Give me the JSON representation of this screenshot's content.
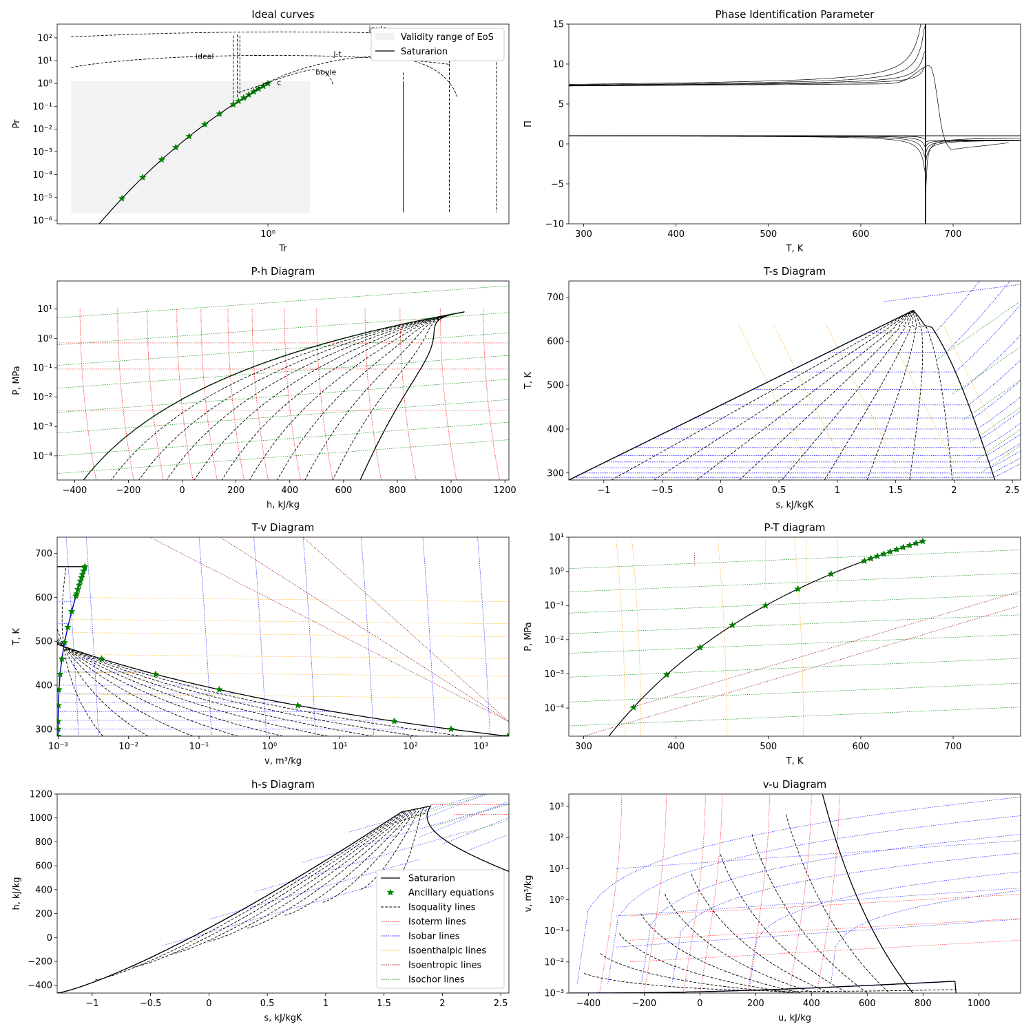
{
  "figure": {
    "background": "#ffffff"
  },
  "styles": {
    "saturation": "#000000",
    "ancillary": "#008000",
    "isoquality": "#000000",
    "isotherm": "#ff0000",
    "isobar": "#0000ff",
    "isoenthalpic": "#ffa500",
    "isoentropic": "#800000",
    "isochor": "#008000",
    "validity_fill": "#f2f2f2"
  },
  "chart_data": [
    {
      "id": "ideal",
      "type": "line",
      "title": "Ideal curves",
      "xlabel": "Tr",
      "ylabel": "Pr",
      "xscale": "log",
      "yscale": "log",
      "xlim": [
        0.4,
        2.85
      ],
      "ylim": [
        7e-07,
        400
      ],
      "xticks": [
        {
          "v": 1,
          "label": "10⁰"
        }
      ],
      "yticks": [
        {
          "v": 1e-06,
          "label": "10⁻⁶"
        },
        {
          "v": 1e-05,
          "label": "10⁻⁵"
        },
        {
          "v": 0.0001,
          "label": "10⁻⁴"
        },
        {
          "v": 0.001,
          "label": "10⁻³"
        },
        {
          "v": 0.01,
          "label": "10⁻²"
        },
        {
          "v": 0.1,
          "label": "10⁻¹"
        },
        {
          "v": 1,
          "label": "10⁰"
        },
        {
          "v": 10,
          "label": "10¹"
        },
        {
          "v": 100,
          "label": "10²"
        }
      ],
      "legend": {
        "position": "top-right",
        "entries": [
          "Validity range of EoS",
          "Saturarion"
        ]
      },
      "annotations": [
        {
          "text": "joule",
          "x": 1.55,
          "y": 190
        },
        {
          "text": "ideal",
          "x": 0.73,
          "y": 12
        },
        {
          "text": "j-t",
          "x": 1.33,
          "y": 15
        },
        {
          "text": "boyle",
          "x": 1.23,
          "y": 2.4
        },
        {
          "text": "c",
          "x": 1.04,
          "y": 0.85
        }
      ]
    },
    {
      "id": "pip",
      "type": "line",
      "title": "Phase Identification Parameter",
      "xlabel": "T, K",
      "ylabel": "Π",
      "xlim": [
        284,
        773
      ],
      "ylim": [
        -10,
        15
      ],
      "xticks": [
        300,
        400,
        500,
        600,
        700
      ],
      "yticks": [
        -10,
        -5,
        0,
        5,
        10,
        15
      ],
      "critical_temperature": 670
    },
    {
      "id": "ph",
      "type": "line",
      "title": "P-h Diagram",
      "xlabel": "h, kJ/kg",
      "ylabel": "P, MPa",
      "yscale": "log",
      "xlim": [
        -465,
        1215
      ],
      "ylim": [
        1.5e-05,
        90
      ],
      "xticks": [
        -400,
        -200,
        0,
        200,
        400,
        600,
        800,
        1000,
        1200
      ],
      "yticks": [
        {
          "v": 0.0001,
          "label": "10⁻⁴"
        },
        {
          "v": 0.001,
          "label": "10⁻³"
        },
        {
          "v": 0.01,
          "label": "10⁻²"
        },
        {
          "v": 0.1,
          "label": "10⁻¹"
        },
        {
          "v": 1,
          "label": "10⁰"
        },
        {
          "v": 10,
          "label": "10¹"
        }
      ]
    },
    {
      "id": "ts",
      "type": "line",
      "title": "T-s Diagram",
      "xlabel": "s, kJ/kgK",
      "ylabel": "T, K",
      "xlim": [
        -1.3,
        2.57
      ],
      "ylim": [
        284,
        737
      ],
      "xticks": [
        -1.0,
        -0.5,
        0.0,
        0.5,
        1.0,
        1.5,
        2.0,
        2.5
      ],
      "yticks": [
        300,
        400,
        500,
        600,
        700
      ]
    },
    {
      "id": "tv",
      "type": "line",
      "title": "T-v Diagram",
      "xlabel": "v, m³/kg",
      "ylabel": "T, K",
      "xscale": "log",
      "xlim": [
        0.00097,
        2500
      ],
      "ylim": [
        284,
        737
      ],
      "xticks": [
        {
          "v": 0.001,
          "label": "10⁻³"
        },
        {
          "v": 0.01,
          "label": "10⁻²"
        },
        {
          "v": 0.1,
          "label": "10⁻¹"
        },
        {
          "v": 1,
          "label": "10⁰"
        },
        {
          "v": 10,
          "label": "10¹"
        },
        {
          "v": 100,
          "label": "10²"
        },
        {
          "v": 1000,
          "label": "10³"
        }
      ],
      "yticks": [
        300,
        400,
        500,
        600,
        700
      ]
    },
    {
      "id": "pt",
      "type": "line",
      "title": "P-T diagram",
      "xlabel": "T, K",
      "ylabel": "P, MPa",
      "yscale": "log",
      "xlim": [
        284,
        773
      ],
      "ylim": [
        1.5e-05,
        10
      ],
      "xticks": [
        300,
        400,
        500,
        600,
        700
      ],
      "yticks": [
        {
          "v": 0.0001,
          "label": "10⁻⁴"
        },
        {
          "v": 0.001,
          "label": "10⁻³"
        },
        {
          "v": 0.01,
          "label": "10⁻²"
        },
        {
          "v": 0.1,
          "label": "10⁻¹"
        },
        {
          "v": 1,
          "label": "10⁰"
        },
        {
          "v": 10,
          "label": "10¹"
        }
      ]
    },
    {
      "id": "hs",
      "type": "line",
      "title": "h-s Diagram",
      "xlabel": "s, kJ/kgK",
      "ylabel": "h, kJ/kg",
      "xlim": [
        -1.3,
        2.57
      ],
      "ylim": [
        -465,
        1200
      ],
      "xticks": [
        -1.0,
        -0.5,
        0.0,
        0.5,
        1.0,
        1.5,
        2.0,
        2.5
      ],
      "yticks": [
        -400,
        -200,
        0,
        200,
        400,
        600,
        800,
        1000,
        1200
      ],
      "legend": {
        "position": "bottom-right",
        "entries": [
          "Saturarion",
          "Ancillary equations",
          "Isoquality lines",
          "Isoterm lines",
          "Isobar lines",
          "Isoenthalpic lines",
          "Isoentropic lines",
          "Isochor lines"
        ]
      }
    },
    {
      "id": "vu",
      "type": "line",
      "title": "v-u Diagram",
      "xlabel": "u, kJ/kg",
      "ylabel": "v, m³/kg",
      "yscale": "log",
      "xlim": [
        -470,
        1150
      ],
      "ylim": [
        0.001,
        2500
      ],
      "xticks": [
        -400,
        -200,
        0,
        200,
        400,
        600,
        800,
        1000
      ],
      "yticks": [
        {
          "v": 0.001,
          "label": "10⁻³"
        },
        {
          "v": 0.01,
          "label": "10⁻²"
        },
        {
          "v": 0.1,
          "label": "10⁻¹"
        },
        {
          "v": 1,
          "label": "10⁰"
        },
        {
          "v": 10,
          "label": "10¹"
        },
        {
          "v": 100,
          "label": "10²"
        },
        {
          "v": 1000,
          "label": "10³"
        }
      ]
    }
  ]
}
